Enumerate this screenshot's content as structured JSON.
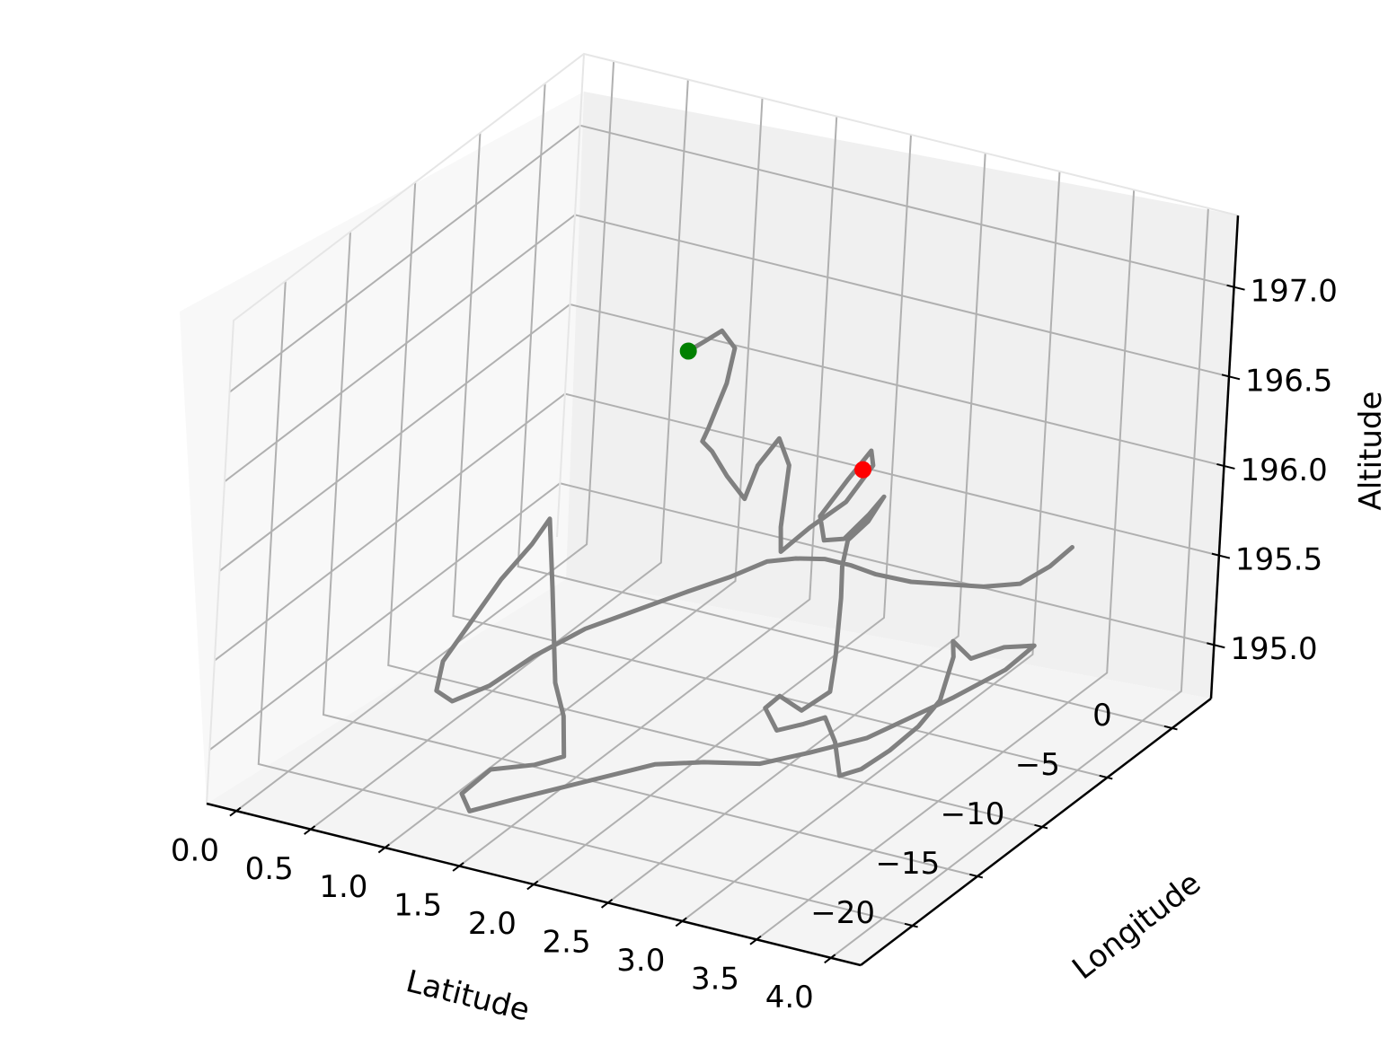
{
  "chart_data": {
    "type": "line3d",
    "xlabel": "Latitude",
    "ylabel": "Longitude",
    "zlabel": "Altitude",
    "x_ticks": [
      "0.0",
      "0.5",
      "1.0",
      "1.5",
      "2.0",
      "2.5",
      "3.0",
      "3.5",
      "4.0"
    ],
    "y_ticks": [
      "−20",
      "−15",
      "−10",
      "−5",
      "0"
    ],
    "z_ticks": [
      "195.0",
      "195.5",
      "196.0",
      "196.5",
      "197.0"
    ],
    "xlim": [
      -0.2,
      4.2
    ],
    "ylim": [
      -24,
      3
    ],
    "zlim": [
      194.7,
      197.4
    ],
    "grid": true,
    "series": [
      {
        "color": "#808080",
        "points": [
          [
            0.85,
            0.0,
            196.12
          ],
          [
            0.9,
            0.5,
            196.15
          ],
          [
            1.0,
            0.8,
            196.22
          ],
          [
            1.1,
            0.7,
            196.15
          ],
          [
            1.1,
            0.2,
            195.98
          ],
          [
            1.05,
            -0.5,
            195.75
          ],
          [
            1.1,
            -1.5,
            195.75
          ],
          [
            1.25,
            -2.5,
            195.78
          ],
          [
            1.4,
            -3.0,
            195.7
          ],
          [
            1.55,
            -3.3,
            195.62
          ],
          [
            1.6,
            -3.0,
            195.8
          ],
          [
            1.7,
            -2.6,
            195.95
          ],
          [
            1.85,
            -3.5,
            195.88
          ],
          [
            1.9,
            -4.5,
            195.6
          ],
          [
            1.95,
            -5.0,
            195.5
          ],
          [
            2.05,
            -4.0,
            195.6
          ],
          [
            2.2,
            -3.0,
            195.72
          ],
          [
            2.3,
            -2.2,
            195.9
          ],
          [
            2.25,
            -1.8,
            195.95
          ],
          [
            2.15,
            -2.3,
            195.8
          ],
          [
            2.05,
            -3.2,
            195.62
          ],
          [
            2.15,
            -4.0,
            195.55
          ],
          [
            2.3,
            -4.2,
            195.6
          ],
          [
            2.4,
            -3.5,
            195.72
          ],
          [
            2.45,
            -3.0,
            195.8
          ],
          [
            2.42,
            -3.8,
            195.7
          ],
          [
            2.35,
            -4.5,
            195.62
          ],
          [
            2.38,
            -5.2,
            195.52
          ],
          [
            2.45,
            -6.0,
            195.4
          ],
          [
            2.6,
            -8.0,
            195.22
          ],
          [
            2.7,
            -9.5,
            195.12
          ],
          [
            2.6,
            -10.5,
            195.05
          ],
          [
            2.45,
            -10.5,
            195.1
          ],
          [
            2.4,
            -11.0,
            195.05
          ],
          [
            2.55,
            -11.8,
            195.0
          ],
          [
            2.7,
            -11.5,
            195.05
          ],
          [
            2.8,
            -11.0,
            195.08
          ],
          [
            2.9,
            -11.3,
            194.98
          ],
          [
            3.0,
            -12.0,
            194.85
          ],
          [
            3.1,
            -11.5,
            194.88
          ],
          [
            3.2,
            -10.5,
            194.95
          ],
          [
            3.3,
            -9.5,
            195.05
          ],
          [
            3.35,
            -8.5,
            195.15
          ],
          [
            3.3,
            -7.0,
            195.3
          ],
          [
            3.25,
            -6.5,
            195.35
          ],
          [
            3.4,
            -6.8,
            195.3
          ],
          [
            3.55,
            -6.0,
            195.35
          ],
          [
            3.75,
            -6.0,
            195.4
          ],
          [
            3.65,
            -7.0,
            195.3
          ],
          [
            3.4,
            -8.0,
            195.15
          ],
          [
            3.2,
            -9.0,
            195.05
          ],
          [
            3.0,
            -10.0,
            194.95
          ],
          [
            2.75,
            -11.5,
            194.9
          ],
          [
            2.55,
            -13.0,
            194.88
          ],
          [
            2.3,
            -14.5,
            194.92
          ],
          [
            2.1,
            -16.0,
            194.95
          ],
          [
            1.8,
            -18.0,
            194.9
          ],
          [
            1.5,
            -20.0,
            194.85
          ],
          [
            1.3,
            -21.0,
            194.8
          ],
          [
            1.2,
            -20.5,
            194.85
          ],
          [
            1.3,
            -19.5,
            194.95
          ],
          [
            1.55,
            -19.0,
            195.0
          ],
          [
            1.7,
            -18.5,
            195.05
          ],
          [
            1.6,
            -17.5,
            195.2
          ],
          [
            1.45,
            -16.5,
            195.3
          ],
          [
            1.3,
            -15.0,
            195.45
          ],
          [
            1.15,
            -13.5,
            195.6
          ],
          [
            1.0,
            -12.0,
            195.72
          ],
          [
            0.9,
            -11.0,
            195.8
          ],
          [
            0.75,
            -10.5,
            195.6
          ],
          [
            0.6,
            -11.0,
            195.4
          ],
          [
            0.5,
            -12.0,
            195.2
          ],
          [
            0.45,
            -13.5,
            195.05
          ],
          [
            0.5,
            -14.5,
            194.95
          ],
          [
            0.65,
            -15.0,
            194.95
          ],
          [
            0.85,
            -14.5,
            195.05
          ],
          [
            1.05,
            -13.5,
            195.2
          ],
          [
            1.3,
            -12.5,
            195.35
          ],
          [
            1.55,
            -11.5,
            195.45
          ],
          [
            1.8,
            -10.5,
            195.55
          ],
          [
            2.0,
            -9.5,
            195.62
          ],
          [
            2.15,
            -8.5,
            195.68
          ],
          [
            2.3,
            -8.0,
            195.7
          ],
          [
            2.45,
            -7.5,
            195.7
          ],
          [
            2.6,
            -7.2,
            195.68
          ],
          [
            2.75,
            -7.0,
            195.65
          ],
          [
            2.95,
            -6.5,
            195.62
          ],
          [
            3.15,
            -6.0,
            195.62
          ],
          [
            3.35,
            -5.5,
            195.62
          ],
          [
            3.55,
            -5.0,
            195.65
          ],
          [
            3.7,
            -4.5,
            195.75
          ],
          [
            3.8,
            -4.0,
            195.85
          ]
        ]
      }
    ],
    "markers": [
      {
        "color": "#008000",
        "point": [
          0.85,
          0.0,
          196.12
        ]
      },
      {
        "color": "#ff0000",
        "point": [
          2.3,
          -3.0,
          195.92
        ]
      }
    ]
  }
}
